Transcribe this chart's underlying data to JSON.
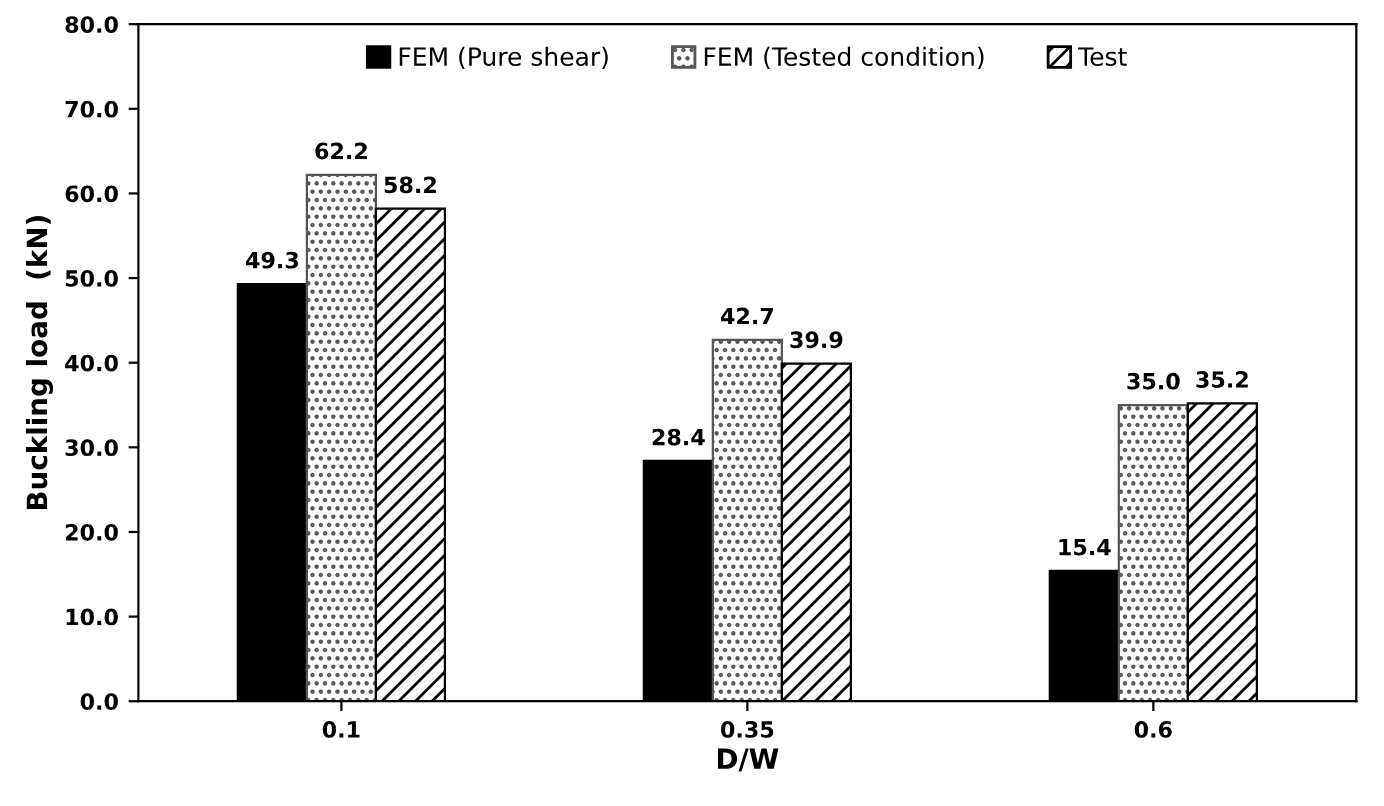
{
  "chart_data": {
    "type": "bar",
    "xlabel": "D/W",
    "ylabel": "Buckling load  (kN)",
    "categories": [
      "0.1",
      "0.35",
      "0.6"
    ],
    "series": [
      {
        "name": "FEM (Pure shear)",
        "color": "#000000",
        "values": [
          49.3,
          28.4,
          15.4
        ],
        "value_labels": [
          "49.3",
          "28.4",
          "15.4"
        ]
      },
      {
        "name": "FEM (Tested condition)",
        "color": "#555555",
        "values": [
          62.2,
          42.7,
          35.0
        ],
        "value_labels": [
          "62.2",
          "42.7",
          "35.0"
        ]
      },
      {
        "name": "Test",
        "color": "#000000",
        "values": [
          58.2,
          39.9,
          35.2
        ],
        "value_labels": [
          "58.2",
          "39.9",
          "35.2"
        ]
      }
    ],
    "ylim": [
      0,
      80
    ],
    "yticks": [
      {
        "value": 0,
        "label": "0.0"
      },
      {
        "value": 10,
        "label": "10.0"
      },
      {
        "value": 20,
        "label": "20.0"
      },
      {
        "value": 30,
        "label": "30.0"
      },
      {
        "value": 40,
        "label": "40.0"
      },
      {
        "value": 50,
        "label": "50.0"
      },
      {
        "value": 60,
        "label": "60.0"
      },
      {
        "value": 70,
        "label": "70.0"
      },
      {
        "value": 80,
        "label": "80.0"
      }
    ],
    "legend": "top",
    "grid": false
  }
}
